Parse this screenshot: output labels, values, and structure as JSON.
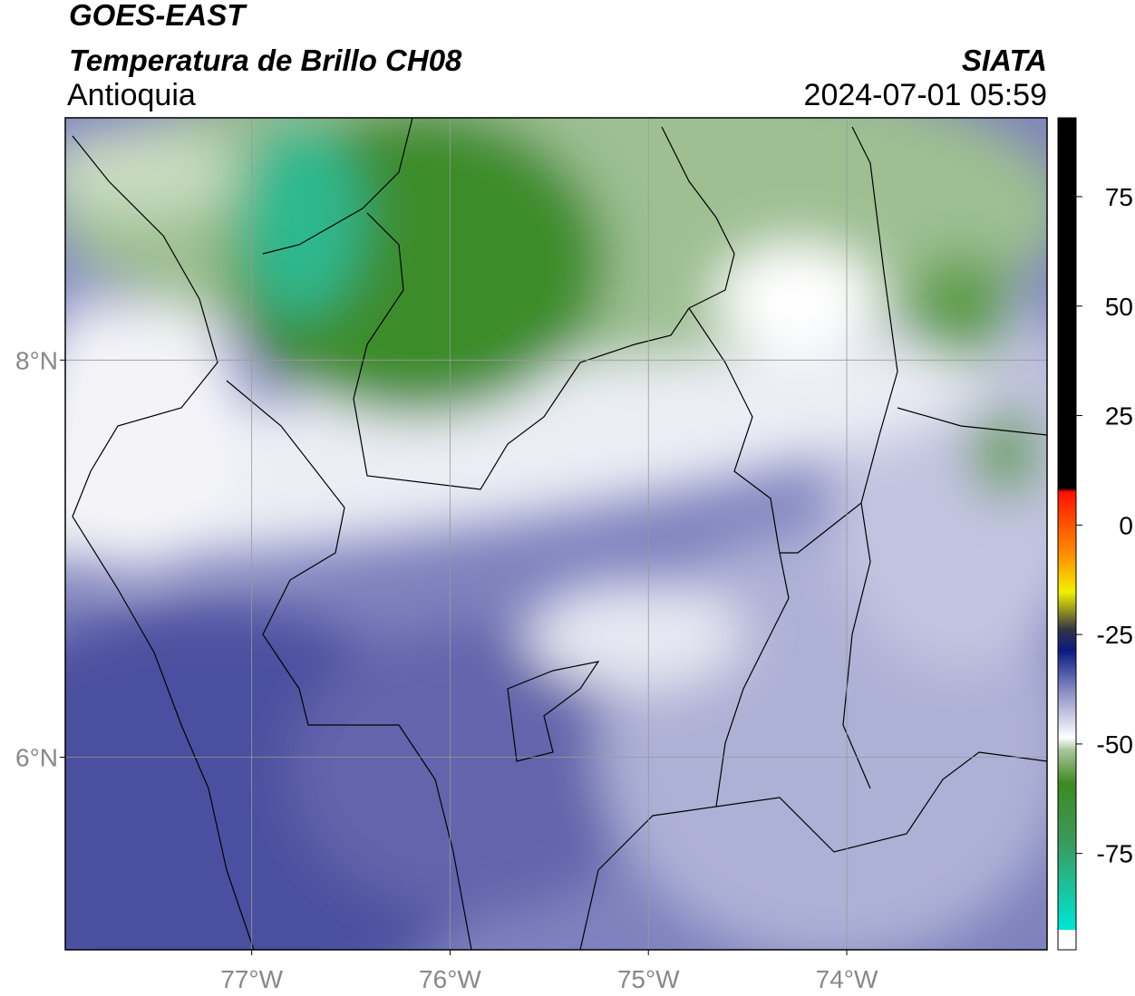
{
  "header": {
    "satellite": "GOES-EAST",
    "product": "Temperatura de Brillo CH08",
    "region": "Antioquia",
    "agency": "SIATA",
    "timestamp": "2024-07-01 05:59"
  },
  "map": {
    "xlim": [
      -77.94,
      -72.99
    ],
    "ylim": [
      5.03,
      9.22
    ],
    "xticks": [
      {
        "value": -77,
        "label": "77°W"
      },
      {
        "value": -76,
        "label": "76°W"
      },
      {
        "value": -75,
        "label": "75°W"
      },
      {
        "value": -74,
        "label": "74°W"
      }
    ],
    "yticks": [
      {
        "value": 8,
        "label": "8°N"
      },
      {
        "value": 6,
        "label": "6°N"
      }
    ],
    "grid": true
  },
  "colorbar": {
    "lim": [
      -97,
      93
    ],
    "ticks": [
      75,
      50,
      25,
      0,
      -25,
      -50,
      -75
    ]
  }
}
